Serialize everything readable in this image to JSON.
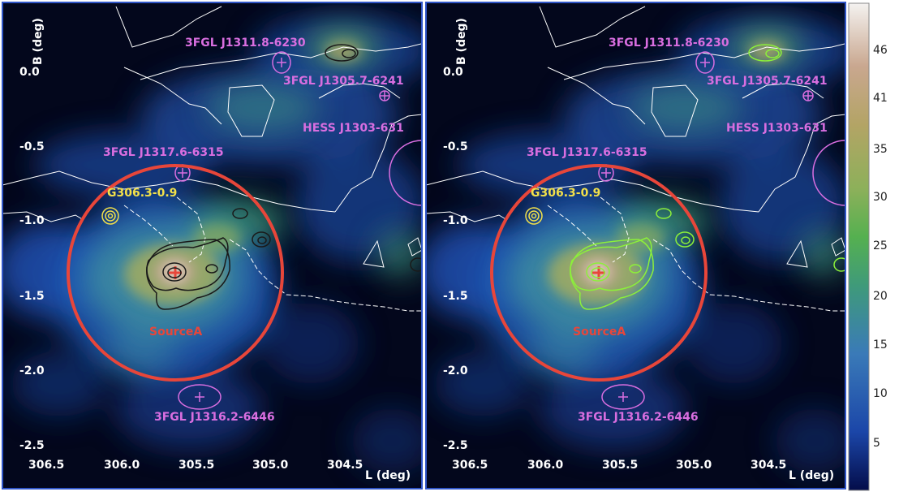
{
  "panels": [
    {
      "id": "left",
      "contour_color": "#1a1a1a"
    },
    {
      "id": "right",
      "contour_color": "#8cf03a"
    }
  ],
  "axes": {
    "ylabel": "B (deg)",
    "xlabel": "L (deg)",
    "yticks": [
      "0.0",
      "-0.5",
      "-1.0",
      "-1.5",
      "-2.0",
      "-2.5"
    ],
    "xticks": [
      "306.5",
      "306.0",
      "305.5",
      "305.0",
      "304.5"
    ]
  },
  "labels": {
    "src1": "3FGL J1311.8-6230",
    "src2": "3FGL J1305.7-6241",
    "hess": "HESS J1303-631",
    "src3": "3FGL J1317.6-6315",
    "snr": "G306.3-0.9",
    "sourceA": "SourceA",
    "src4": "3FGL J1316.2-6446"
  },
  "colorbar": {
    "ticks": [
      "46",
      "41",
      "35",
      "30",
      "25",
      "20",
      "15",
      "10",
      "5"
    ]
  },
  "colors": {
    "background": "#03071c",
    "border": "#2f55c7",
    "circle": "#e8463a",
    "magenta": "#d96ee0",
    "yellow": "#f2e04a"
  }
}
